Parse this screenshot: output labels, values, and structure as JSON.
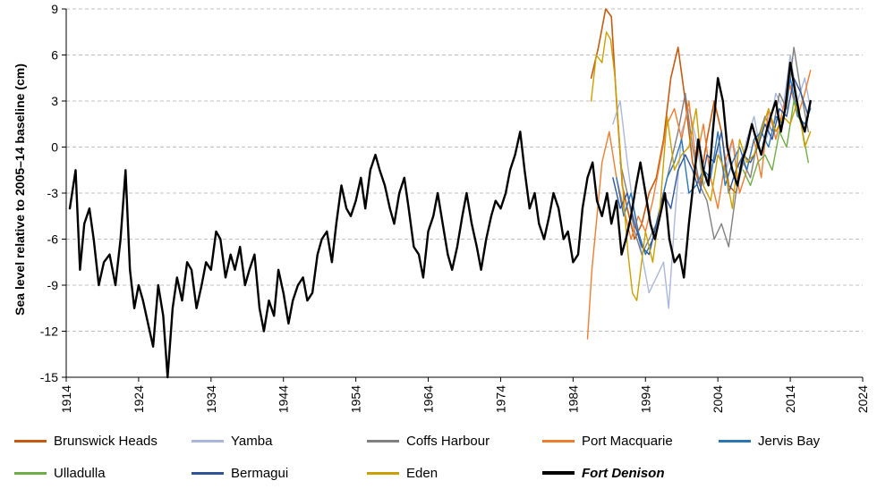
{
  "chart_data": {
    "type": "line",
    "title": "",
    "xlabel": "",
    "ylabel": "Sea level relative to 2005–14 baseline (cm)",
    "xlim": [
      1914,
      2024
    ],
    "ylim": [
      -15,
      9
    ],
    "x_ticks": [
      1914,
      1924,
      1934,
      1944,
      1954,
      1964,
      1974,
      1984,
      1994,
      2004,
      2014,
      2024
    ],
    "y_ticks": [
      9,
      6,
      3,
      0,
      -3,
      -6,
      -9,
      -12,
      -15
    ],
    "grid": "horizontal dashed",
    "legend_position": "bottom",
    "series": [
      {
        "name": "Brunswick Heads",
        "color": "#C55A11",
        "width": 1.6,
        "x": [
          1986.5,
          1987.5,
          1988.5,
          1989.3,
          1990,
          1990.8,
          1991.5,
          1992.5,
          1993.5,
          1994.5,
          1995.5,
          1996.5,
          1997.5,
          1998.5,
          1999.5,
          2000.5,
          2001.5,
          2002.5,
          2003.5,
          2004.5,
          2005.5,
          2006.5,
          2007.5,
          2008.5
        ],
        "values": [
          4.5,
          6.5,
          9.0,
          8.5,
          3.0,
          -2.5,
          -4.0,
          -6.0,
          -5.0,
          -3.0,
          -2.0,
          0.5,
          4.5,
          6.5,
          3.0,
          -1.0,
          -2.5,
          0.5,
          3.0,
          1.0,
          -2.5,
          -3.0,
          -0.5,
          1.0
        ]
      },
      {
        "name": "Yamba",
        "color": "#A9B8DA",
        "width": 1.4,
        "x": [
          1989.5,
          1990.5,
          1991.5,
          1992.5,
          1993.5,
          1994.5,
          1995.5,
          1996.5,
          1997.2,
          1998,
          1999,
          2000,
          2001,
          2002,
          2003,
          2004,
          2005,
          2006,
          2007,
          2008,
          2009,
          2010,
          2011,
          2012,
          2013,
          2014,
          2015,
          2016,
          2016.8
        ],
        "values": [
          1.5,
          3.0,
          -1.0,
          -4.5,
          -7.0,
          -9.5,
          -8.5,
          -7.5,
          -10.5,
          -5.0,
          1.0,
          2.5,
          0.5,
          -2.5,
          -1.5,
          0.0,
          -2.0,
          0.5,
          -1.5,
          0.5,
          2.0,
          -0.5,
          1.0,
          3.5,
          2.5,
          6.0,
          3.0,
          4.5,
          2.5
        ]
      },
      {
        "name": "Coffs Harbour",
        "color": "#808080",
        "width": 1.4,
        "x": [
          1990.5,
          1991.5,
          1992.5,
          1993.5,
          1994.5,
          1995.5,
          1996.5,
          1997.5,
          1998.5,
          1999.5,
          2000.5,
          2001.5,
          2002.5,
          2003.5,
          2004.5,
          2005.5,
          2006.5,
          2007.5,
          2008.5,
          2009.5,
          2010.5,
          2011.5,
          2012.5,
          2013.5,
          2014.5,
          2015.5,
          2016.5
        ],
        "values": [
          -1.0,
          -3.0,
          -5.5,
          -7.0,
          -6.0,
          -5.0,
          -3.0,
          -1.0,
          1.0,
          3.5,
          0.0,
          -2.5,
          -3.5,
          -6.0,
          -5.0,
          -6.5,
          -3.0,
          -1.0,
          -2.0,
          0.5,
          2.0,
          1.0,
          3.5,
          2.5,
          6.5,
          3.5,
          1.0
        ]
      },
      {
        "name": "Port Macquarie",
        "color": "#ED7D31",
        "width": 1.4,
        "x": [
          1986.0,
          1986.6,
          1987.2,
          1988,
          1989,
          1990,
          1991,
          1992,
          1993,
          1994,
          1995,
          1996,
          1997,
          1998,
          1999,
          2000,
          2001,
          2002,
          2003,
          2004,
          2005,
          2006,
          2007,
          2008,
          2009,
          2010,
          2011,
          2012,
          2013,
          2014,
          2015,
          2016,
          2016.8
        ],
        "values": [
          -12.5,
          -8.0,
          -5.0,
          -1.0,
          1.0,
          -2.0,
          -4.0,
          -6.0,
          -4.5,
          -5.5,
          -3.5,
          -1.0,
          1.5,
          2.5,
          0.5,
          3.0,
          -1.0,
          1.5,
          -2.0,
          -4.0,
          -1.0,
          0.5,
          -3.0,
          -1.5,
          0.5,
          -2.0,
          2.5,
          0.5,
          2.5,
          4.0,
          2.0,
          3.5,
          5.0
        ]
      },
      {
        "name": "Jervis Bay",
        "color": "#2E75B6",
        "width": 1.4,
        "x": [
          1990,
          1991,
          1992,
          1993,
          1994,
          1995,
          1996,
          1997,
          1998,
          1999,
          2000,
          2001,
          2002,
          2003,
          2004,
          2005,
          2006,
          2007,
          2008,
          2009,
          2010,
          2011,
          2012,
          2013,
          2014,
          2015,
          2016,
          2016.8
        ],
        "values": [
          -2.0,
          -4.5,
          -3.0,
          -5.5,
          -7.0,
          -6.0,
          -4.0,
          -2.0,
          -1.0,
          0.5,
          -3.0,
          -2.5,
          -1.5,
          -2.0,
          1.0,
          -2.5,
          -1.0,
          0.0,
          -1.5,
          0.5,
          1.0,
          0.0,
          2.0,
          1.5,
          4.5,
          2.0,
          1.5,
          2.5
        ]
      },
      {
        "name": "Ulladulla",
        "color": "#70AD47",
        "width": 1.4,
        "x": [
          2007.5,
          2008.5,
          2009.5,
          2010.5,
          2011.5,
          2012.5,
          2013.5,
          2014.5,
          2015.5,
          2016.5
        ],
        "values": [
          -1.5,
          -2.5,
          -1.0,
          -0.5,
          -1.5,
          1.0,
          0.0,
          3.0,
          1.5,
          -1.0
        ]
      },
      {
        "name": "Bermagui",
        "color": "#2F5597",
        "width": 1.4,
        "x": [
          1989.5,
          1990.5,
          1991.5,
          1992.5,
          1993.5,
          1994.5,
          1995.5,
          1996.5,
          1997.5,
          1998.5,
          1999.5,
          2000.5,
          2001.5,
          2002.5,
          2003.5,
          2004.5,
          2005.5,
          2006.5,
          2007.5,
          2008.5,
          2009.5,
          2010.5,
          2011.5,
          2012.5,
          2013.5,
          2014.5,
          2015.5,
          2016.5
        ],
        "values": [
          -2.0,
          -4.0,
          -3.0,
          -5.0,
          -6.5,
          -7.0,
          -5.0,
          -3.0,
          -4.0,
          -1.5,
          -0.5,
          -1.5,
          -3.0,
          -0.5,
          -1.0,
          1.0,
          -3.0,
          -1.5,
          -0.5,
          -1.0,
          0.0,
          1.5,
          0.5,
          2.5,
          2.0,
          4.5,
          3.5,
          2.0
        ]
      },
      {
        "name": "Eden",
        "color": "#C9A000",
        "width": 1.4,
        "x": [
          1986.5,
          1987.2,
          1988,
          1988.6,
          1989.2,
          1989.8,
          1990.4,
          1991,
          1991.6,
          1992.2,
          1992.8,
          1994,
          1995,
          1996,
          1997,
          1998,
          1999,
          2000,
          2001,
          2002,
          2003,
          2004,
          2005,
          2006,
          2007,
          2008,
          2009,
          2010,
          2011,
          2012,
          2013,
          2014,
          2015,
          2016,
          2016.8
        ],
        "values": [
          3.0,
          6.0,
          5.5,
          7.5,
          7.0,
          4.5,
          0.5,
          -3.5,
          -7.0,
          -9.5,
          -10.0,
          -5.5,
          -7.5,
          -4.0,
          2.0,
          -1.5,
          -0.5,
          0.0,
          2.5,
          -2.5,
          -3.5,
          -0.5,
          -1.5,
          -4.0,
          0.5,
          -1.0,
          -0.5,
          1.0,
          2.5,
          1.0,
          2.0,
          1.5,
          3.0,
          0.0,
          1.0
        ]
      },
      {
        "name": "Fort Denison",
        "color": "#000000",
        "width": 2.4,
        "emphasis": true,
        "x": [
          1914.5,
          1915.3,
          1915.9,
          1916.5,
          1917.2,
          1917.8,
          1918.5,
          1919.2,
          1920,
          1920.8,
          1921.5,
          1922.2,
          1922.8,
          1923.4,
          1924,
          1924.6,
          1925.3,
          1926,
          1926.7,
          1927.4,
          1928,
          1928.7,
          1929.3,
          1930,
          1930.7,
          1931.3,
          1932,
          1932.7,
          1933.3,
          1934,
          1934.7,
          1935.3,
          1936,
          1936.7,
          1937.3,
          1938,
          1938.7,
          1939.3,
          1940,
          1940.7,
          1941.3,
          1942,
          1942.7,
          1943.3,
          1944,
          1944.7,
          1945.3,
          1946,
          1946.7,
          1947.3,
          1948,
          1948.7,
          1949.3,
          1950,
          1950.7,
          1951.3,
          1952,
          1952.7,
          1953.3,
          1954,
          1954.7,
          1955.3,
          1956,
          1956.7,
          1957.3,
          1958,
          1958.7,
          1959.3,
          1960,
          1960.7,
          1961.3,
          1962,
          1962.7,
          1963.3,
          1964,
          1964.7,
          1965.3,
          1966,
          1966.7,
          1967.3,
          1968,
          1968.7,
          1969.3,
          1970,
          1970.7,
          1971.3,
          1972,
          1972.7,
          1973.3,
          1974,
          1974.7,
          1975.3,
          1976,
          1976.7,
          1977.3,
          1978,
          1978.7,
          1979.3,
          1980,
          1980.7,
          1981.3,
          1982,
          1982.7,
          1983.3,
          1984,
          1984.7,
          1985.3,
          1986,
          1986.7,
          1987.3,
          1988,
          1988.7,
          1989.3,
          1990,
          1990.7,
          1991.3,
          1992,
          1992.7,
          1993.3,
          1994,
          1994.7,
          1995.3,
          1996,
          1996.7,
          1997.3,
          1998,
          1998.7,
          1999.3,
          2000,
          2000.7,
          2001.3,
          2002,
          2002.7,
          2003.3,
          2004,
          2004.7,
          2005.3,
          2006,
          2006.7,
          2007.3,
          2008,
          2008.7,
          2009.3,
          2010,
          2010.7,
          2011.3,
          2012,
          2012.7,
          2013.3,
          2014,
          2014.7,
          2015.3,
          2016,
          2016.8
        ],
        "values": [
          -4.0,
          -1.5,
          -8.0,
          -5.0,
          -4.0,
          -6.0,
          -9.0,
          -7.5,
          -7.0,
          -9.0,
          -6.0,
          -1.5,
          -8.0,
          -10.5,
          -9.0,
          -10.0,
          -11.5,
          -13.0,
          -9.0,
          -11.0,
          -15.0,
          -10.5,
          -8.5,
          -10.0,
          -7.5,
          -8.0,
          -10.5,
          -9.0,
          -7.5,
          -8.0,
          -5.5,
          -6.0,
          -8.5,
          -7.0,
          -8.0,
          -6.5,
          -9.0,
          -8.0,
          -7.0,
          -10.5,
          -12.0,
          -10.0,
          -11.0,
          -8.0,
          -9.5,
          -11.5,
          -10.0,
          -9.0,
          -8.5,
          -10.0,
          -9.5,
          -7.0,
          -6.0,
          -5.5,
          -7.5,
          -5.0,
          -2.5,
          -4.0,
          -4.5,
          -3.5,
          -2.0,
          -4.0,
          -1.5,
          -0.5,
          -1.5,
          -2.5,
          -4.0,
          -5.0,
          -3.0,
          -2.0,
          -4.0,
          -6.5,
          -7.0,
          -8.5,
          -5.5,
          -4.5,
          -3.0,
          -5.0,
          -7.0,
          -8.0,
          -6.5,
          -4.5,
          -3.0,
          -5.0,
          -6.5,
          -8.0,
          -6.0,
          -4.5,
          -3.5,
          -4.0,
          -3.0,
          -1.5,
          -0.5,
          1.0,
          -1.5,
          -4.0,
          -3.0,
          -5.0,
          -6.0,
          -4.5,
          -3.0,
          -4.0,
          -6.0,
          -5.5,
          -7.5,
          -7.0,
          -4.0,
          -2.0,
          -1.0,
          -3.5,
          -4.5,
          -3.0,
          -5.0,
          -3.5,
          -7.0,
          -6.0,
          -4.5,
          -2.5,
          -1.0,
          -3.0,
          -5.0,
          -6.0,
          -4.5,
          -3.0,
          -6.0,
          -7.5,
          -7.0,
          -8.5,
          -5.0,
          -2.0,
          0.5,
          -1.5,
          -2.5,
          1.0,
          4.5,
          3.0,
          0.0,
          -1.5,
          -2.5,
          -1.0,
          0.0,
          1.5,
          0.5,
          -0.5,
          1.0,
          2.0,
          3.0,
          1.0,
          2.5,
          5.5,
          3.5,
          2.0,
          1.0,
          3.0
        ]
      }
    ]
  }
}
